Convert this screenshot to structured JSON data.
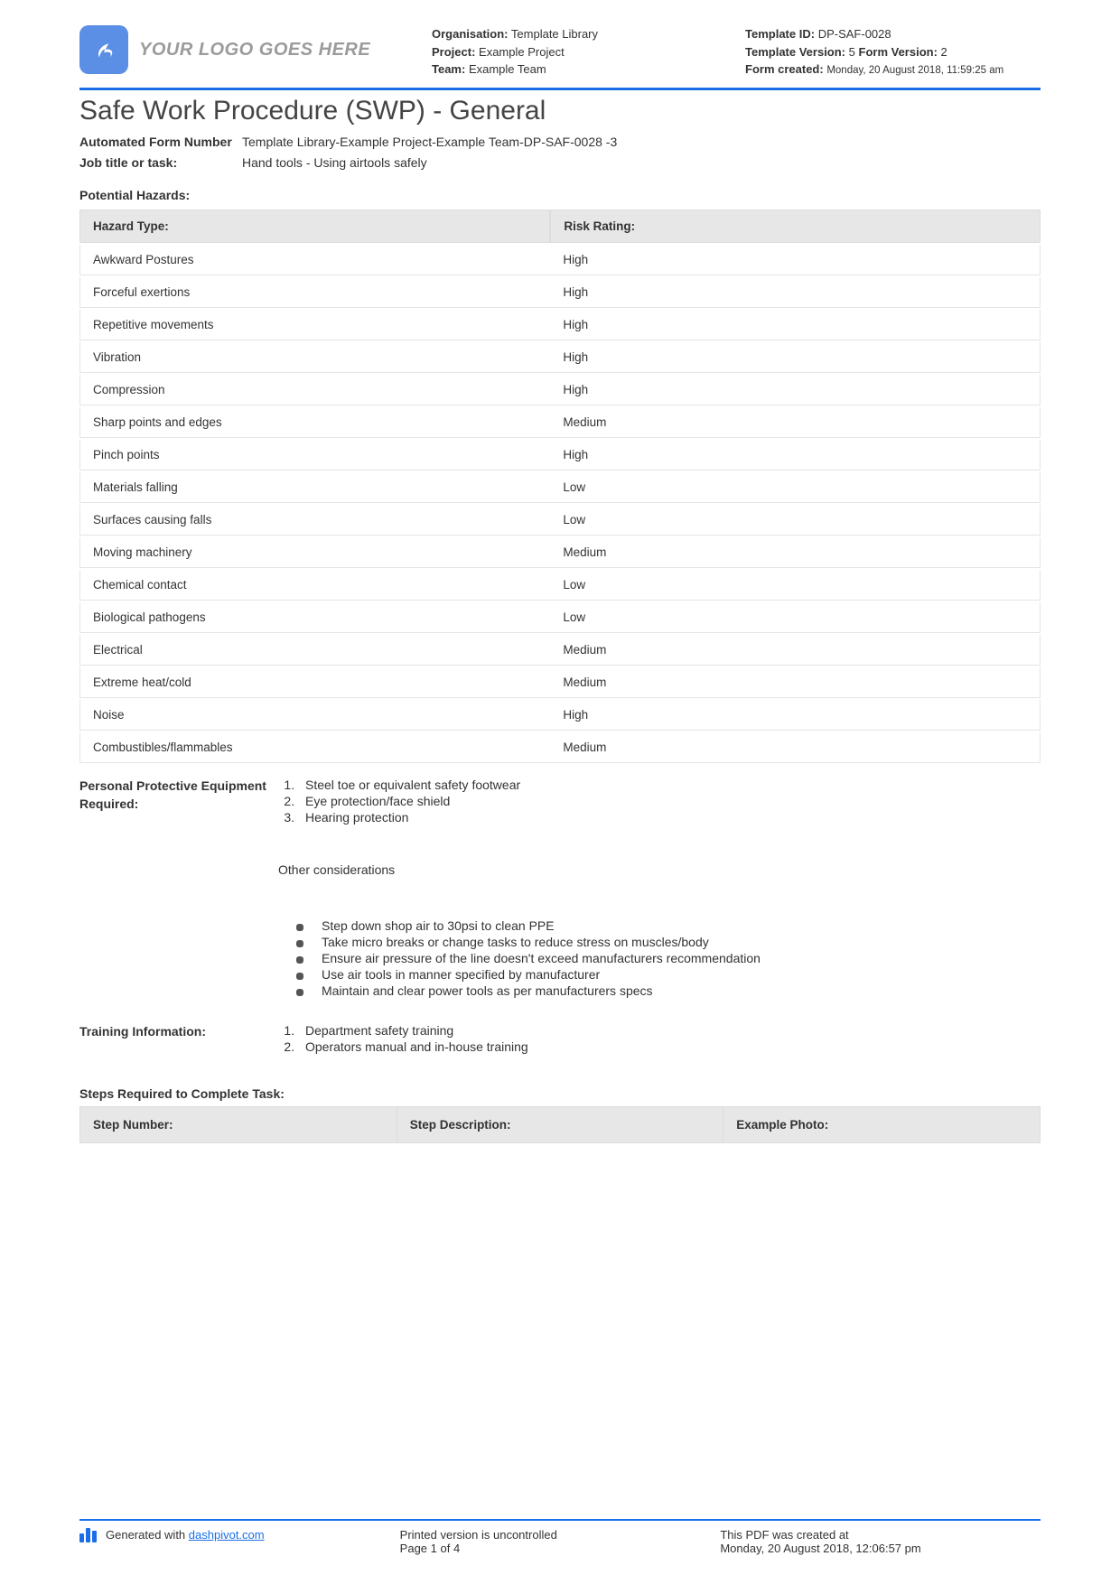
{
  "logo": {
    "placeholder_text": "YOUR LOGO GOES HERE"
  },
  "header_meta_left": {
    "organisation_label": "Organisation:",
    "organisation_value": "Template Library",
    "project_label": "Project:",
    "project_value": "Example Project",
    "team_label": "Team:",
    "team_value": "Example Team"
  },
  "header_meta_right": {
    "template_id_label": "Template ID:",
    "template_id_value": "DP-SAF-0028",
    "template_version_label": "Template Version:",
    "template_version_value": "5",
    "form_version_label": "Form Version:",
    "form_version_value": "2",
    "form_created_label": "Form created:",
    "form_created_value": "Monday, 20 August 2018, 11:59:25 am"
  },
  "main_title": "Safe Work Procedure (SWP) - General",
  "form_number": {
    "label": "Automated Form Number",
    "value": "Template Library-Example Project-Example Team-DP-SAF-0028   -3"
  },
  "job_title": {
    "label": "Job title or task:",
    "value": "Hand tools - Using airtools safely"
  },
  "hazards_section_title": "Potential Hazards:",
  "hazards_table": {
    "col1": "Hazard Type:",
    "col2": "Risk Rating:",
    "rows": [
      {
        "type": "Awkward Postures",
        "rating": "High"
      },
      {
        "type": "Forceful exertions",
        "rating": "High"
      },
      {
        "type": "Repetitive movements",
        "rating": "High"
      },
      {
        "type": "Vibration",
        "rating": "High"
      },
      {
        "type": "Compression",
        "rating": "High"
      },
      {
        "type": "Sharp points and edges",
        "rating": "Medium"
      },
      {
        "type": "Pinch points",
        "rating": "High"
      },
      {
        "type": "Materials falling",
        "rating": "Low"
      },
      {
        "type": "Surfaces causing falls",
        "rating": "Low"
      },
      {
        "type": "Moving machinery",
        "rating": "Medium"
      },
      {
        "type": "Chemical contact",
        "rating": "Low"
      },
      {
        "type": "Biological pathogens",
        "rating": "Low"
      },
      {
        "type": "Electrical",
        "rating": "Medium"
      },
      {
        "type": "Extreme heat/cold",
        "rating": "Medium"
      },
      {
        "type": "Noise",
        "rating": "High"
      },
      {
        "type": "Combustibles/flammables",
        "rating": "Medium"
      }
    ]
  },
  "ppe": {
    "label": "Personal Protective Equipment Required:",
    "items": [
      "Steel toe or equivalent safety footwear",
      "Eye protection/face shield",
      "Hearing protection"
    ]
  },
  "other_considerations": {
    "heading": "Other considerations",
    "items": [
      "Step down shop air to 30psi to clean PPE",
      "Take micro breaks or change tasks to reduce stress on muscles/body",
      "Ensure air pressure of the line doesn't exceed manufacturers recommendation",
      "Use air tools in manner specified by manufacturer",
      "Maintain and clear power tools as per manufacturers specs"
    ]
  },
  "training": {
    "label": "Training Information:",
    "items": [
      "Department safety training",
      "Operators manual and in-house training"
    ]
  },
  "steps_section_title": "Steps Required to Complete Task:",
  "steps_table": {
    "col1": "Step Number:",
    "col2": "Step Description:",
    "col3": "Example Photo:"
  },
  "footer": {
    "generated_prefix": "Generated with ",
    "generated_link": "dashpivot.com",
    "printed_line": "Printed version is uncontrolled",
    "page_line": "Page 1 of 4",
    "created_at_label": "This PDF was created at",
    "created_at_value": "Monday, 20 August 2018, 12:06:57 pm"
  }
}
